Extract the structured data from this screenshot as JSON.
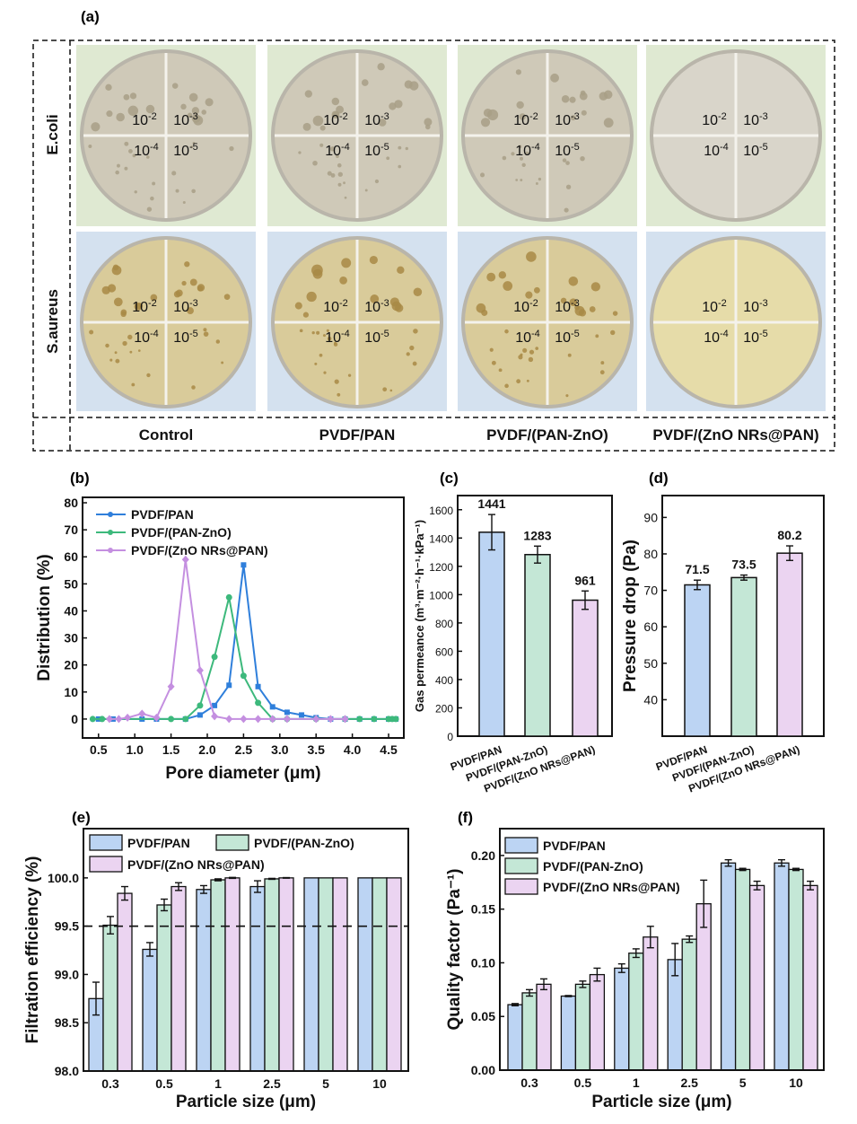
{
  "panel_labels": {
    "a": "(a)",
    "b": "(b)",
    "c": "(c)",
    "d": "(d)",
    "e": "(e)",
    "f": "(f)"
  },
  "panel_a": {
    "rows": [
      {
        "label": "E.coli",
        "background": "#dfe9d2",
        "plate_color": "#cfc9b8",
        "colony_color": "#a89f86"
      },
      {
        "label": "S.aureus",
        "background": "#d4e1ef",
        "plate_color": "#d9cb9a",
        "colony_color": "#a88a45"
      }
    ],
    "columns": [
      "Control",
      "PVDF/PAN",
      "PVDF/(PAN-ZnO)",
      "PVDF/(ZnO NRs@PAN)"
    ],
    "colony_growth": [
      true,
      true,
      true,
      false
    ],
    "dilutions": [
      {
        "base": "10",
        "exp": "-2"
      },
      {
        "base": "10",
        "exp": "-3"
      },
      {
        "base": "10",
        "exp": "-4"
      },
      {
        "base": "10",
        "exp": "-5"
      }
    ]
  },
  "legend": [
    "PVDF/PAN",
    "PVDF/(PAN-ZnO)",
    "PVDF/(ZnO NRs@PAN)"
  ],
  "colors": {
    "line": [
      "#2f7fdb",
      "#3db97c",
      "#c48fe0"
    ],
    "bar": [
      "#bcd4f3",
      "#c4e7d6",
      "#ebd4f1"
    ]
  },
  "chart_data": [
    {
      "id": "b",
      "type": "line",
      "xlabel": "Pore diameter (μm)",
      "ylabel": "Distribution (%)",
      "xlim": [
        0.28,
        4.71
      ],
      "ylim": [
        -7,
        82
      ],
      "xticks": [
        "0.5",
        "1.0",
        "1.5",
        "2.0",
        "2.5",
        "3.0",
        "3.5",
        "4.0",
        "4.5"
      ],
      "yticks": [
        "0",
        "10",
        "20",
        "30",
        "40",
        "50",
        "60",
        "70",
        "80"
      ],
      "legend_position": "top-left",
      "series": [
        {
          "name": "PVDF/PAN",
          "marker": "square",
          "x": [
            0.5,
            0.7,
            1.1,
            1.3,
            1.7,
            1.9,
            2.1,
            2.3,
            2.5,
            2.7,
            2.9,
            3.1,
            3.3,
            3.5,
            3.7,
            3.9,
            4.1,
            4.3,
            4.5,
            4.6
          ],
          "y": [
            0,
            0,
            0,
            0,
            0,
            1.5,
            5,
            12.5,
            57,
            12,
            4.5,
            2.5,
            1.5,
            0.5,
            0,
            0,
            0,
            0,
            0,
            0
          ]
        },
        {
          "name": "PVDF/(PAN-ZnO)",
          "marker": "circle",
          "x": [
            0.42,
            0.55,
            1.5,
            1.7,
            1.9,
            2.1,
            2.3,
            2.5,
            2.7,
            2.9,
            3.1,
            3.5,
            3.9,
            4.1,
            4.3,
            4.5,
            4.55,
            4.6
          ],
          "y": [
            0,
            0,
            0,
            0,
            5,
            23,
            45,
            16,
            6,
            0,
            0,
            0,
            0,
            0,
            0,
            0,
            0,
            0
          ]
        },
        {
          "name": "PVDF/(ZnO NRs@PAN)",
          "marker": "diamond",
          "x": [
            0.65,
            0.78,
            0.9,
            1.1,
            1.3,
            1.5,
            1.7,
            1.9,
            2.1,
            2.3,
            2.5,
            2.7,
            2.9,
            3.1,
            3.5,
            3.7,
            3.9
          ],
          "y": [
            0,
            0,
            0.5,
            2,
            0.5,
            12,
            59,
            18,
            1,
            0,
            0,
            0,
            0,
            0,
            0,
            0,
            0
          ]
        }
      ]
    },
    {
      "id": "c",
      "type": "bar",
      "ylabel": "Gas permeance (m³·m⁻²·h⁻¹·kPa⁻¹)",
      "ylim": [
        0,
        1700
      ],
      "yticks": [
        "0",
        "200",
        "400",
        "600",
        "800",
        "1000",
        "1200",
        "1400",
        "1600"
      ],
      "categories": [
        "PVDF/PAN",
        "PVDF/(PAN-ZnO)",
        "PVDF/(ZnO NRs@PAN)"
      ],
      "values": [
        1441,
        1283,
        961
      ],
      "errors": [
        125,
        60,
        65
      ],
      "data_labels": [
        "1441",
        "1283",
        "961"
      ]
    },
    {
      "id": "d",
      "type": "bar",
      "ylabel": "Pressure drop (Pa)",
      "ylim": [
        30,
        96
      ],
      "yticks": [
        "40",
        "50",
        "60",
        "70",
        "80",
        "90"
      ],
      "categories": [
        "PVDF/PAN",
        "PVDF/(PAN-ZnO)",
        "PVDF/(ZnO NRs@PAN)"
      ],
      "values": [
        71.5,
        73.5,
        80.2
      ],
      "errors": [
        1.3,
        0.7,
        2.0
      ],
      "data_labels": [
        "71.5",
        "73.5",
        "80.2"
      ]
    },
    {
      "id": "e",
      "type": "bar",
      "xlabel": "Particle size (μm)",
      "ylabel": "Filtration efficiency (%)",
      "ylim": [
        98.0,
        100.51
      ],
      "yticks": [
        "98.0",
        "98.5",
        "99.0",
        "99.5",
        "100.0"
      ],
      "reference_line": 99.5,
      "legend_position": "top",
      "categories": [
        "0.3",
        "0.5",
        "1",
        "2.5",
        "5",
        "10"
      ],
      "series": [
        {
          "name": "PVDF/PAN",
          "values": [
            98.75,
            99.26,
            99.88,
            99.91,
            100,
            100
          ],
          "errors": [
            0.17,
            0.07,
            0.04,
            0.06,
            0,
            0
          ]
        },
        {
          "name": "PVDF/(PAN-ZnO)",
          "values": [
            99.51,
            99.72,
            99.98,
            99.99,
            100,
            100
          ],
          "errors": [
            0.09,
            0.06,
            0.01,
            0.005,
            0,
            0
          ]
        },
        {
          "name": "PVDF/(ZnO NRs@PAN)",
          "values": [
            99.84,
            99.91,
            100,
            100,
            100,
            100
          ],
          "errors": [
            0.07,
            0.04,
            0.005,
            0.003,
            0,
            0
          ]
        }
      ]
    },
    {
      "id": "f",
      "type": "bar",
      "xlabel": "Particle size (μm)",
      "ylabel": "Quality factor (Pa⁻¹)",
      "ylim": [
        0,
        0.225
      ],
      "yticks": [
        "0.00",
        "0.05",
        "0.10",
        "0.15",
        "0.20"
      ],
      "legend_position": "top-left",
      "categories": [
        "0.3",
        "0.5",
        "1",
        "2.5",
        "5",
        "10"
      ],
      "series": [
        {
          "name": "PVDF/PAN",
          "values": [
            0.061,
            0.069,
            0.095,
            0.103,
            0.193,
            0.193
          ],
          "errors": [
            0.001,
            0.0005,
            0.004,
            0.015,
            0.003,
            0.003
          ]
        },
        {
          "name": "PVDF/(PAN-ZnO)",
          "values": [
            0.072,
            0.08,
            0.109,
            0.122,
            0.187,
            0.187
          ],
          "errors": [
            0.003,
            0.003,
            0.004,
            0.003,
            0.001,
            0.001
          ]
        },
        {
          "name": "PVDF/(ZnO NRs@PAN)",
          "values": [
            0.08,
            0.089,
            0.124,
            0.155,
            0.172,
            0.172
          ],
          "errors": [
            0.005,
            0.006,
            0.01,
            0.022,
            0.004,
            0.004
          ]
        }
      ]
    }
  ]
}
